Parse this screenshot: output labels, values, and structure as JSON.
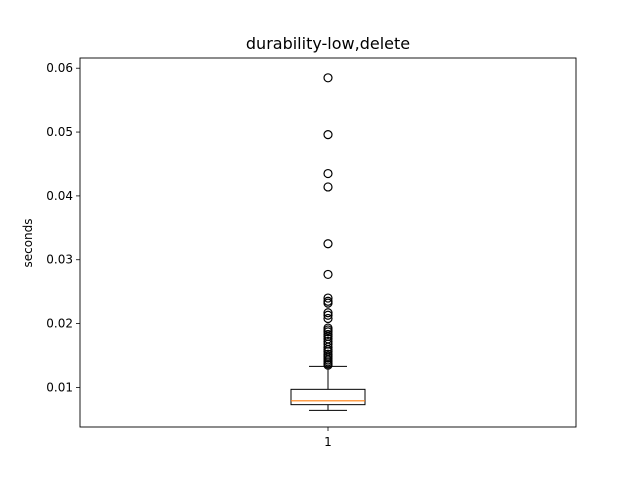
{
  "chart_data": {
    "type": "box",
    "title": "durability-low,delete",
    "xlabel": "",
    "ylabel": "seconds",
    "categories": [
      "1"
    ],
    "ylim": [
      0.0038,
      0.0616
    ],
    "yticks": [
      0.01,
      0.02,
      0.03,
      0.04,
      0.05,
      0.06
    ],
    "ytick_labels": [
      "0.01",
      "0.02",
      "0.03",
      "0.04",
      "0.05",
      "0.06"
    ],
    "grid": false,
    "box": {
      "whisker_low": 0.0064,
      "q1": 0.0073,
      "median": 0.0079,
      "q3": 0.0097,
      "whisker_high": 0.0133
    },
    "outliers": [
      0.0585,
      0.0496,
      0.0435,
      0.0414,
      0.0325,
      0.0277,
      0.024,
      0.0235,
      0.0232,
      0.0217,
      0.0213,
      0.0208,
      0.0193,
      0.019,
      0.0187,
      0.0183,
      0.018,
      0.0176,
      0.0172,
      0.0168,
      0.0163,
      0.0159,
      0.0156,
      0.0152,
      0.0149,
      0.0146,
      0.0143,
      0.014,
      0.0137,
      0.0135
    ],
    "colors": {
      "box": "#000000",
      "median": "#ff7f0e",
      "outlier": "#000000",
      "background": "#ffffff"
    }
  }
}
